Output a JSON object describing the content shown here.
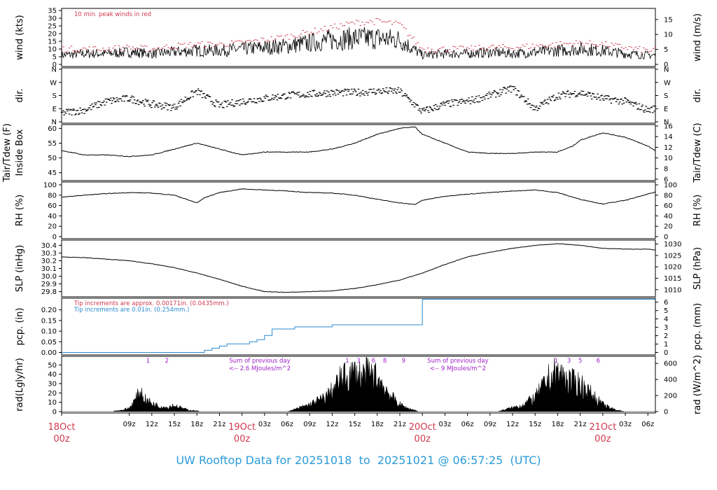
{
  "chart_data": [
    {
      "type": "line",
      "panel": "wind",
      "ylabel_left": "wind (kts)",
      "ylabel_right": "wind (m/s)",
      "left_ticks": [
        0,
        5,
        10,
        15,
        20,
        25,
        30,
        35
      ],
      "right_ticks": [
        0,
        5,
        10,
        15
      ],
      "ylim": [
        0,
        35
      ],
      "annotation": "10 min. peak winds in red",
      "series": [
        {
          "color": "#000000",
          "x_hours": [
            0,
            3,
            6,
            9,
            12,
            15,
            18,
            21,
            24,
            27,
            30,
            33,
            36,
            39,
            42,
            45,
            48,
            51,
            54,
            57,
            60,
            63,
            66,
            69,
            72,
            75,
            78,
            79
          ],
          "values": [
            6,
            7,
            7,
            8,
            7,
            8,
            9,
            9,
            10,
            11,
            12,
            14,
            16,
            17,
            17,
            16,
            6,
            7,
            7,
            8,
            7,
            8,
            9,
            10,
            9,
            7,
            6,
            6
          ]
        },
        {
          "color": "#d03a4e",
          "x_hours": [
            0,
            3,
            6,
            9,
            12,
            15,
            18,
            21,
            24,
            27,
            30,
            33,
            36,
            39,
            42,
            45,
            48,
            51,
            54,
            57,
            60,
            63,
            66,
            69,
            72,
            75,
            78,
            79
          ],
          "values": [
            10,
            10,
            10,
            11,
            10,
            12,
            13,
            13,
            14,
            16,
            18,
            21,
            24,
            27,
            28,
            26,
            10,
            10,
            10,
            11,
            11,
            12,
            13,
            14,
            13,
            11,
            9,
            9
          ]
        }
      ]
    },
    {
      "type": "scatter",
      "panel": "dir",
      "ylabel_left": "dir.",
      "ylabel_right": "dir.",
      "left_ticks": [
        "N",
        "E",
        "S",
        "W",
        "N"
      ],
      "right_ticks": [
        "N",
        "E",
        "S",
        "W",
        "N"
      ],
      "ylim": [
        0,
        360
      ],
      "series": [
        {
          "color": "#000000",
          "x_hours": [
            0,
            3,
            6,
            9,
            12,
            15,
            18,
            21,
            24,
            27,
            30,
            33,
            36,
            39,
            42,
            45,
            48,
            51,
            54,
            57,
            60,
            63,
            66,
            69,
            72,
            75,
            78,
            79
          ],
          "values": [
            60,
            80,
            140,
            160,
            120,
            100,
            210,
            110,
            140,
            160,
            180,
            190,
            200,
            200,
            210,
            210,
            70,
            120,
            140,
            180,
            230,
            90,
            180,
            200,
            160,
            140,
            80,
            90
          ]
        }
      ]
    },
    {
      "type": "line",
      "panel": "temp",
      "ylabel_left": "Tair/Tdew (F)",
      "ylabel_left2": "Inside Box",
      "ylabel_right": "Tair/Tdew (C)",
      "left_ticks": [
        45,
        50,
        55,
        60
      ],
      "right_ticks": [
        6,
        8,
        10,
        12,
        14,
        16
      ],
      "ylim": [
        42.8,
        60.8
      ],
      "series": [
        {
          "color": "#000000",
          "x_hours": [
            0,
            3,
            6,
            9,
            12,
            15,
            18,
            21,
            24,
            27,
            30,
            33,
            36,
            39,
            42,
            45,
            47,
            48,
            51,
            54,
            57,
            60,
            63,
            66,
            68,
            69,
            72,
            75,
            78,
            79
          ],
          "values": [
            52.5,
            51,
            51,
            50.5,
            51,
            53,
            55,
            53,
            51,
            52,
            52,
            52,
            53,
            55,
            58,
            60,
            60.5,
            58,
            55,
            52,
            51.5,
            51.5,
            52,
            52,
            54,
            56,
            58.5,
            57,
            54,
            52.5
          ]
        }
      ]
    },
    {
      "type": "line",
      "panel": "rh",
      "ylabel_left": "RH (%)",
      "ylabel_right": "RH (%)",
      "left_ticks": [
        0,
        20,
        40,
        60,
        80,
        100
      ],
      "right_ticks": [
        0,
        20,
        40,
        60,
        80,
        100
      ],
      "ylim": [
        0,
        100
      ],
      "series": [
        {
          "color": "#000000",
          "x_hours": [
            0,
            3,
            6,
            9,
            12,
            15,
            18,
            19,
            21,
            24,
            27,
            30,
            33,
            36,
            39,
            42,
            45,
            47,
            48,
            51,
            54,
            57,
            60,
            63,
            66,
            69,
            72,
            75,
            78,
            79
          ],
          "values": [
            76,
            80,
            83,
            85,
            84,
            80,
            65,
            75,
            85,
            92,
            90,
            88,
            85,
            84,
            80,
            72,
            65,
            62,
            70,
            78,
            82,
            85,
            88,
            90,
            85,
            72,
            63,
            70,
            82,
            86
          ]
        }
      ]
    },
    {
      "type": "line",
      "panel": "slp",
      "ylabel_left": "SLP (inHg)",
      "ylabel_right": "SLP (hPa)",
      "left_ticks": [
        "29.8",
        "29.9",
        "30.0",
        "30.1",
        "30.2",
        "30.3",
        "30.4"
      ],
      "right_ticks": [
        1010,
        1015,
        1020,
        1025,
        1030
      ],
      "ylim": [
        29.76,
        30.44
      ],
      "series": [
        {
          "color": "#000000",
          "x_hours": [
            0,
            3,
            6,
            9,
            12,
            15,
            18,
            21,
            24,
            27,
            30,
            33,
            36,
            39,
            42,
            45,
            48,
            51,
            54,
            57,
            60,
            63,
            66,
            69,
            72,
            75,
            78,
            79
          ],
          "values": [
            30.25,
            30.24,
            30.22,
            30.2,
            30.16,
            30.11,
            30.04,
            29.96,
            29.87,
            29.8,
            29.79,
            29.8,
            29.81,
            29.84,
            29.89,
            29.95,
            30.04,
            30.15,
            30.25,
            30.31,
            30.36,
            30.4,
            30.42,
            30.4,
            30.36,
            30.35,
            30.35,
            30.34
          ]
        }
      ]
    },
    {
      "type": "line",
      "panel": "pcp",
      "ylabel_left": "pcp. (in)",
      "ylabel_right": "pcp. (mm)",
      "left_ticks": [
        "0.00",
        "0.05",
        "0.10",
        "0.15",
        "0.20"
      ],
      "right_ticks": [
        0,
        1,
        2,
        3,
        4,
        5,
        6
      ],
      "ylim": [
        -0.005,
        0.245
      ],
      "annotation_1": "Tip increments are approx. 0.00171in. (0.0435mm.)",
      "annotation_2": "Tip increments are 0.01in. (0.254mm.)",
      "series": [
        {
          "color": "#2b8ad2",
          "x_hours": [
            0,
            18.5,
            19,
            20,
            21,
            22,
            24,
            25,
            26,
            27,
            28,
            29,
            31,
            33,
            36,
            39,
            44,
            47.9,
            48,
            79
          ],
          "values": [
            0,
            0,
            0.01,
            0.02,
            0.03,
            0.04,
            0.04,
            0.05,
            0.06,
            0.08,
            0.11,
            0.11,
            0.12,
            0.12,
            0.13,
            0.13,
            0.13,
            0.13,
            0.25,
            0.25
          ]
        }
      ]
    },
    {
      "type": "area",
      "panel": "rad",
      "ylabel_left": "rad(Lgly/hr)",
      "ylabel_right": "rad (W/m^2)",
      "left_ticks": [
        0,
        10,
        20,
        30,
        40,
        50
      ],
      "right_ticks": [
        0,
        200,
        400,
        600
      ],
      "ylim": [
        0,
        57
      ],
      "daily_sum_1": "Sum of previous day",
      "daily_sum_1b": "<-- 2.6 MJoules/m^2",
      "daily_sum_2": "Sum of previous day",
      "daily_sum_2b": "<-- 9 MJoules/m^2",
      "digit_labels": [
        {
          "x_hour": 11.5,
          "text": "1"
        },
        {
          "x_hour": 14,
          "text": "2"
        },
        {
          "x_hour": 38,
          "text": "1"
        },
        {
          "x_hour": 39.5,
          "text": "3"
        },
        {
          "x_hour": 41.5,
          "text": "6"
        },
        {
          "x_hour": 43,
          "text": "8"
        },
        {
          "x_hour": 45.5,
          "text": "9"
        },
        {
          "x_hour": 65.8,
          "text": "1"
        },
        {
          "x_hour": 67.5,
          "text": "3"
        },
        {
          "x_hour": 69,
          "text": "5"
        },
        {
          "x_hour": 71.4,
          "text": "6"
        }
      ],
      "series": [
        {
          "color": "#000000",
          "x_hours": [
            6.5,
            8,
            9,
            10,
            10.5,
            11,
            12,
            13,
            14,
            15,
            16,
            17,
            18,
            18.5,
            30,
            31,
            33,
            35,
            36,
            37,
            38,
            39,
            40,
            41,
            42,
            43,
            44,
            45,
            46,
            47,
            47.5,
            58,
            59,
            61,
            63,
            64,
            65,
            66,
            67,
            68,
            69,
            70,
            71,
            72,
            73,
            74,
            75
          ],
          "values": [
            0,
            2,
            5,
            20,
            30,
            18,
            12,
            8,
            6,
            9,
            5,
            2,
            1,
            0,
            0,
            3,
            10,
            20,
            30,
            45,
            50,
            55,
            52,
            54,
            48,
            35,
            20,
            10,
            5,
            2,
            0,
            0,
            3,
            8,
            20,
            35,
            50,
            55,
            48,
            42,
            40,
            30,
            20,
            10,
            5,
            2,
            0
          ]
        }
      ]
    }
  ],
  "x_axis": {
    "hour_labels": [
      {
        "h": 9,
        "text": "09z"
      },
      {
        "h": 12,
        "text": "12z"
      },
      {
        "h": 15,
        "text": "15z"
      },
      {
        "h": 18,
        "text": "18z"
      },
      {
        "h": 21,
        "text": "21z"
      },
      {
        "h": 27,
        "text": "03z"
      },
      {
        "h": 30,
        "text": "06z"
      },
      {
        "h": 33,
        "text": "09z"
      },
      {
        "h": 36,
        "text": "12z"
      },
      {
        "h": 39,
        "text": "15z"
      },
      {
        "h": 42,
        "text": "18z"
      },
      {
        "h": 45,
        "text": "21z"
      },
      {
        "h": 51,
        "text": "03z"
      },
      {
        "h": 54,
        "text": "06z"
      },
      {
        "h": 57,
        "text": "09z"
      },
      {
        "h": 60,
        "text": "12z"
      },
      {
        "h": 63,
        "text": "15z"
      },
      {
        "h": 66,
        "text": "18z"
      },
      {
        "h": 69,
        "text": "21z"
      },
      {
        "h": 75,
        "text": "03z"
      },
      {
        "h": 78,
        "text": "06z"
      }
    ],
    "day_labels": [
      {
        "h": 0,
        "day": "18Oct",
        "time": "00z"
      },
      {
        "h": 24,
        "day": "19Oct",
        "time": "00z"
      },
      {
        "h": 48,
        "day": "20Oct",
        "time": "00z"
      },
      {
        "h": 72,
        "day": "21Oct",
        "time": "00z"
      }
    ]
  },
  "footer": {
    "prefix": "UW Rooftop Data for",
    "start": "20251018",
    "to": "to",
    "end": "20251021",
    "at": "@",
    "time": "06:57:25",
    "tz": "(UTC)"
  }
}
